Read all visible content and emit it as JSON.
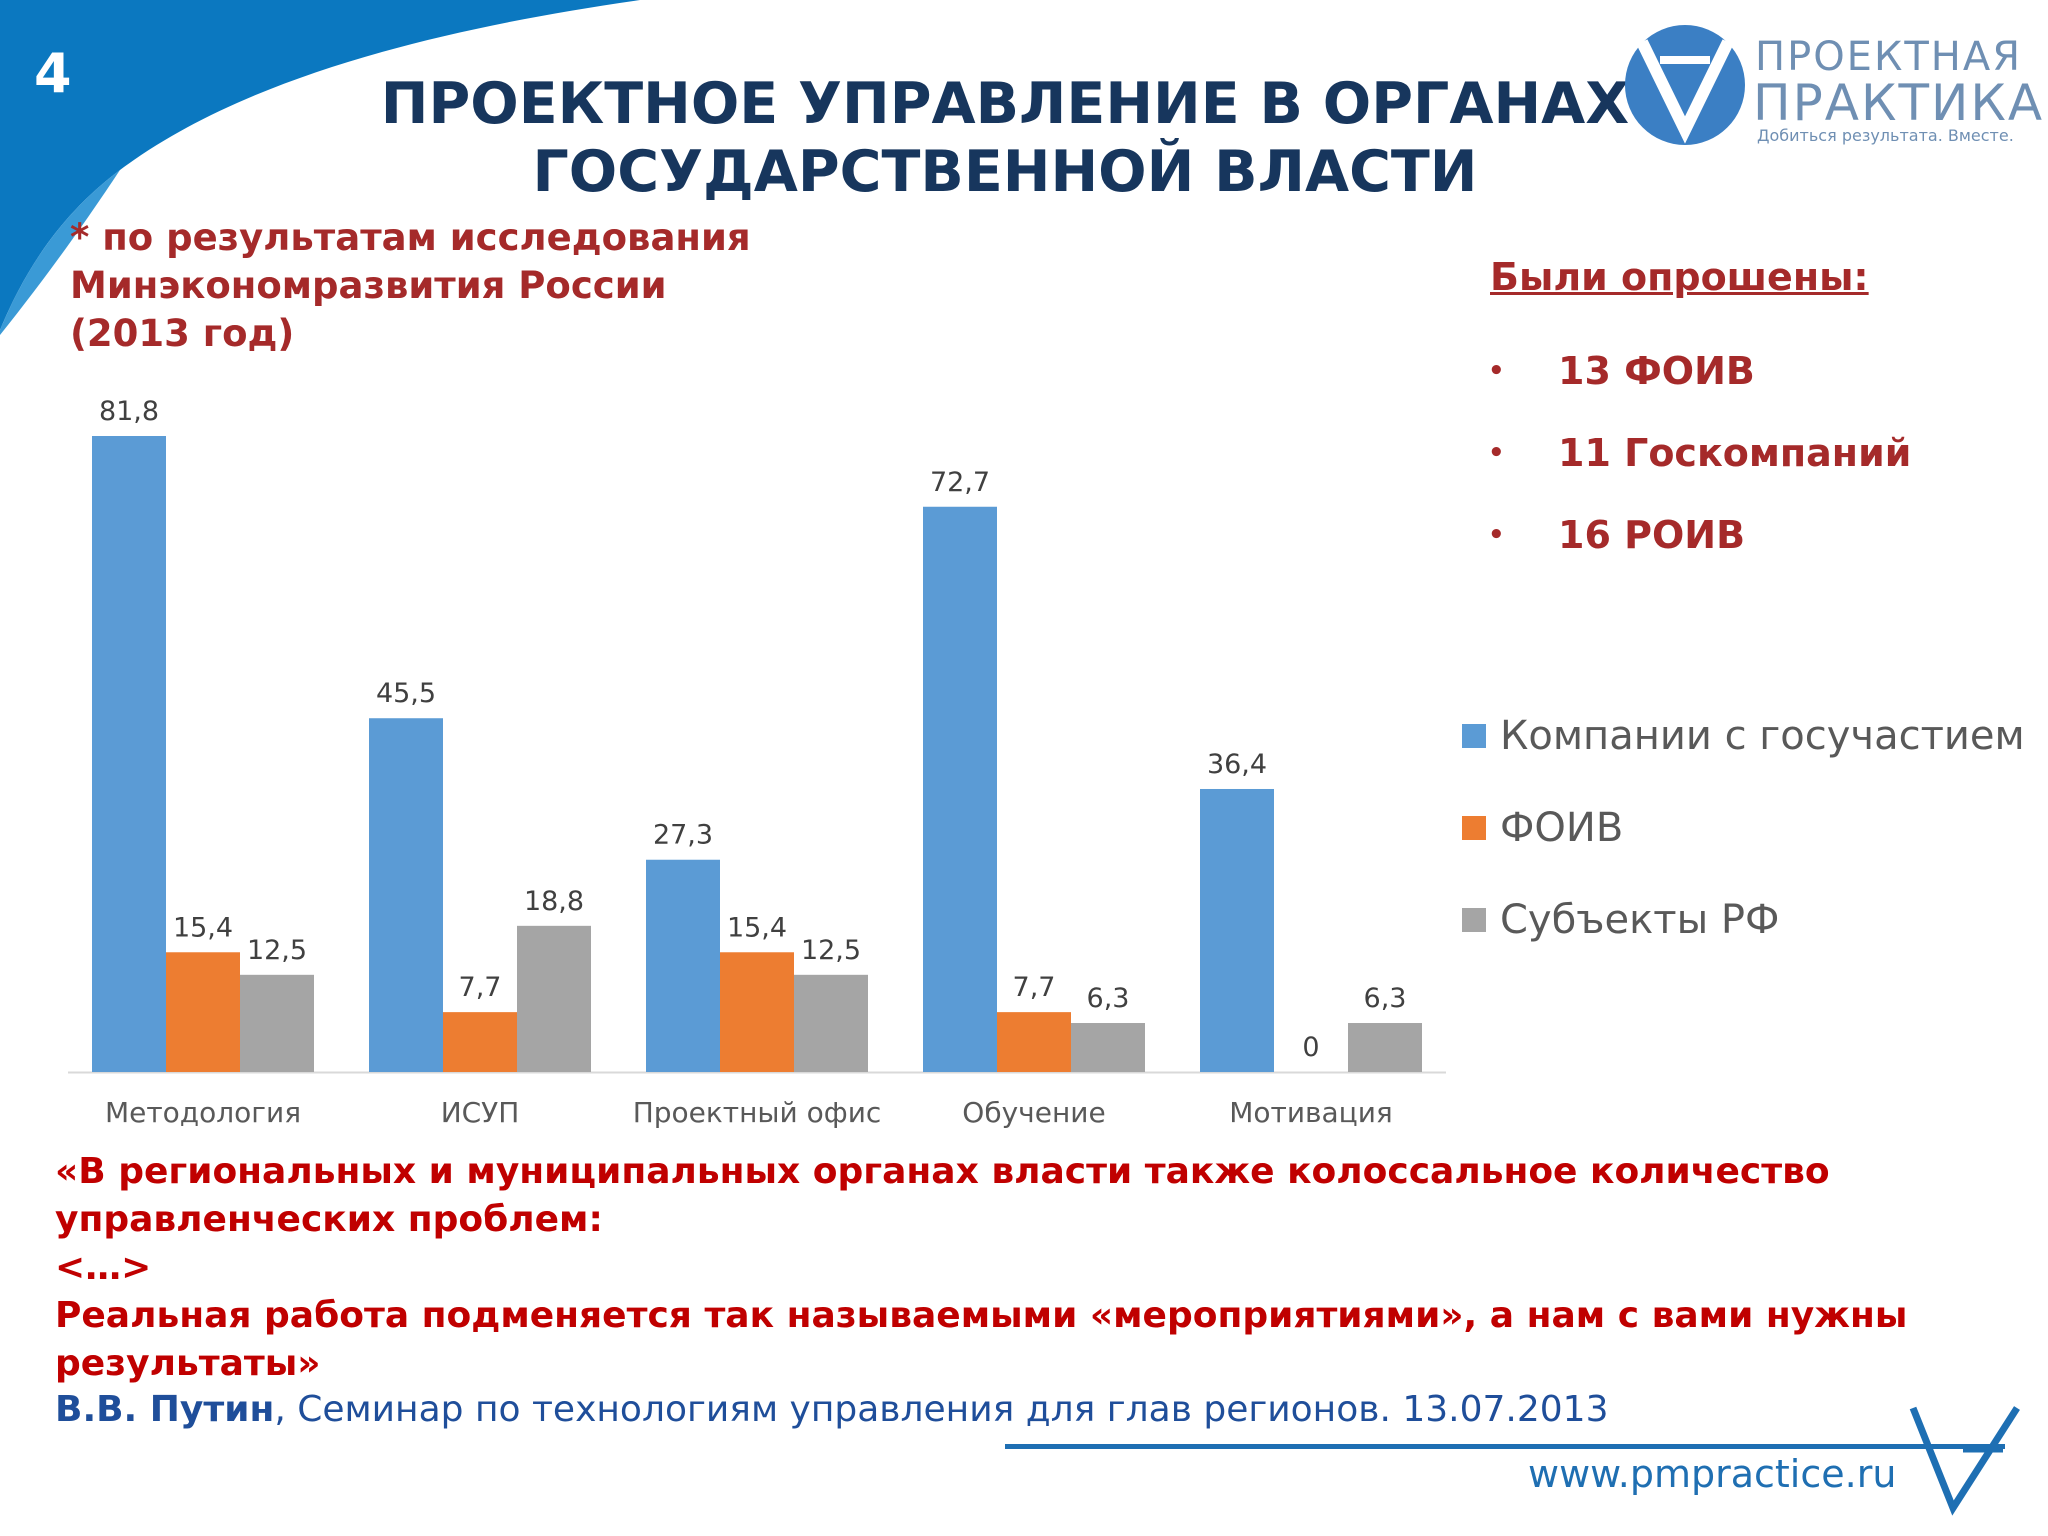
{
  "slide": {
    "number": "4",
    "title_line1": "ПРОЕКТНОЕ УПРАВЛЕНИЕ В ОРГАНАХ",
    "title_line2": "ГОСУДАРСТВЕННОЙ ВЛАСТИ"
  },
  "logo": {
    "line1": "ПРОЕКТНАЯ",
    "line2": "ПРАКТИКА",
    "tagline": "Добиться результата. Вместе."
  },
  "note": {
    "line1": "* по результатам исследования",
    "line2": "Минэкономразвития России",
    "line3": "(2013 год)"
  },
  "surveyed": {
    "title": "Были опрошены:",
    "items": [
      "13 ФОИВ",
      "11 Госкомпаний",
      "16 РОИВ"
    ]
  },
  "colors": {
    "series1": "#5b9bd5",
    "series2": "#ed7d31",
    "series3": "#a5a5a5",
    "title": "#17365d",
    "accent_red": "#c00000",
    "brown_red": "#a52a2a",
    "corner_blue": "#0b78c0"
  },
  "chart_data": {
    "type": "bar",
    "categories": [
      "Методология",
      "ИСУП",
      "Проектный офис",
      "Обучение",
      "Мотивация"
    ],
    "series": [
      {
        "name": "Компании с госучастием",
        "values": [
          81.8,
          45.5,
          27.3,
          72.7,
          36.4
        ],
        "labels": [
          "81,8",
          "45,5",
          "27,3",
          "72,7",
          "36,4"
        ]
      },
      {
        "name": "ФОИВ",
        "values": [
          15.4,
          7.7,
          15.4,
          7.7,
          0
        ],
        "labels": [
          "15,4",
          "7,7",
          "15,4",
          "7,7",
          "0"
        ]
      },
      {
        "name": "Субъекты РФ",
        "values": [
          12.5,
          18.8,
          12.5,
          6.3,
          6.3
        ],
        "labels": [
          "12,5",
          "18,8",
          "12,5",
          "6,3",
          "6,3"
        ]
      }
    ],
    "ylim": [
      0,
      81.8
    ],
    "grid": false,
    "legend": "right"
  },
  "quote": {
    "line1": "«В региональных и муниципальных органах власти также колоссальное количество",
    "line2": "управленческих проблем:",
    "line3": "<…>",
    "line4": "Реальная работа подменяется так называемыми «мероприятиями», а нам с вами нужны",
    "line5": "результаты»"
  },
  "attribution": {
    "author": "В.В. Путин",
    "text": ", Семинар по технологиям управления для глав регионов. 13.07.2013"
  },
  "footer": {
    "url": "www.pmpractice.ru"
  }
}
